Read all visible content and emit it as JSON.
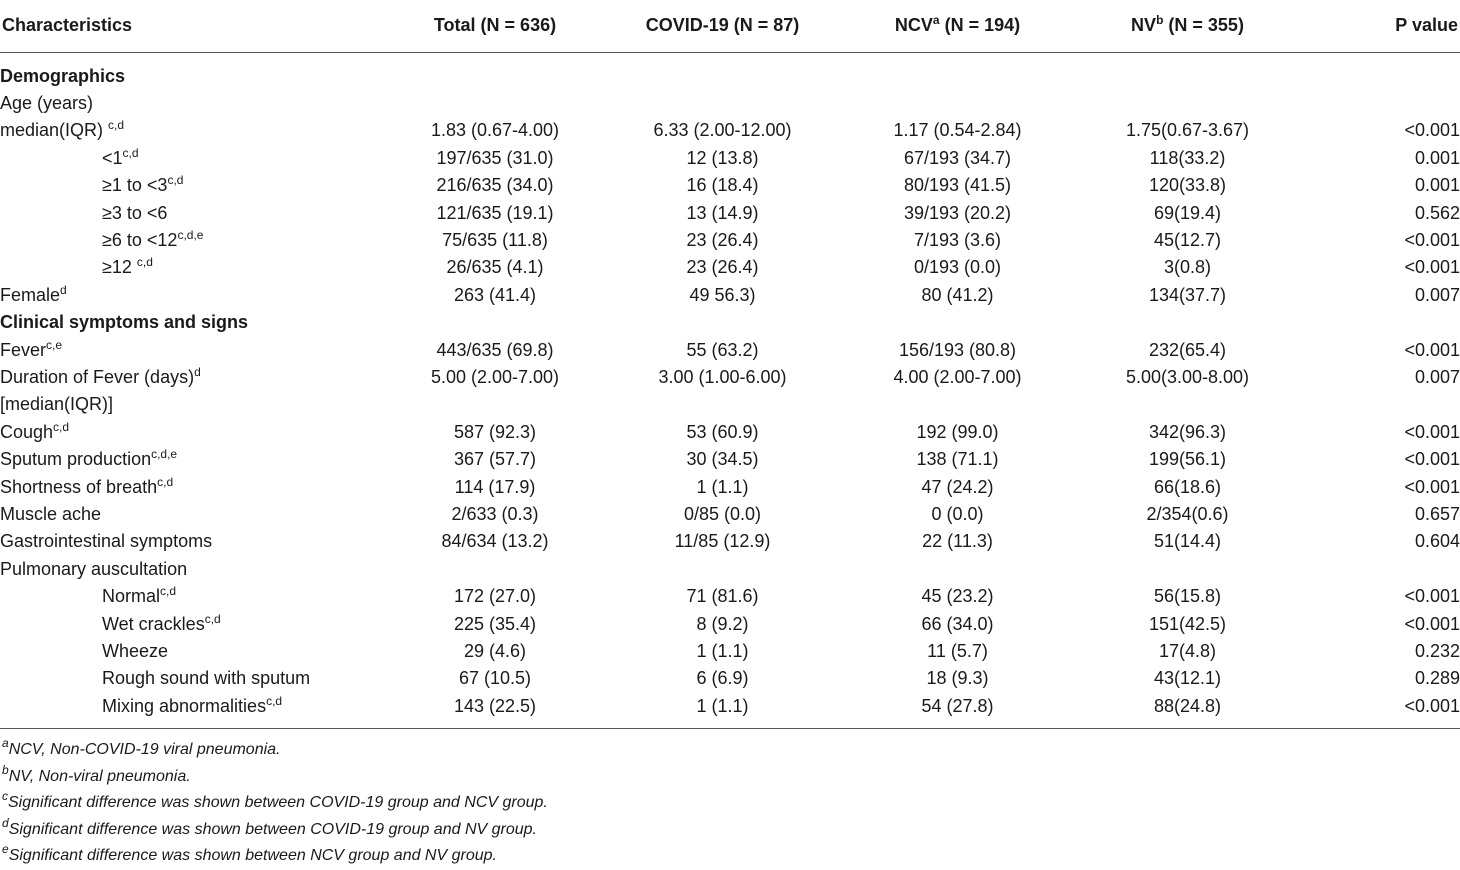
{
  "header": {
    "characteristics": "Characteristics",
    "total": "Total (N = 636)",
    "covid": "COVID-19 (N = 87)",
    "ncv_name": "NCV",
    "ncv_sup": "a",
    "ncv_n": " (N = 194)",
    "nv_name": "NV",
    "nv_sup": "b",
    "nv_n": " (N = 355)",
    "pvalue": "P value"
  },
  "rows": [
    {
      "label": "Demographics",
      "sup": "",
      "section": true,
      "indent": false,
      "cells": [
        "",
        "",
        "",
        "",
        ""
      ]
    },
    {
      "label": "Age (years)",
      "sup": "",
      "section": false,
      "indent": false,
      "cells": [
        "",
        "",
        "",
        "",
        ""
      ]
    },
    {
      "label": "median(IQR) ",
      "sup": "c,d",
      "section": false,
      "indent": false,
      "cells": [
        "1.83 (0.67-4.00)",
        "6.33 (2.00-12.00)",
        "1.17 (0.54-2.84)",
        "1.75(0.67-3.67)",
        "<0.001"
      ]
    },
    {
      "label": "<1",
      "sup": "c,d",
      "section": false,
      "indent": true,
      "cells": [
        "197/635 (31.0)",
        "12 (13.8)",
        "67/193 (34.7)",
        "118(33.2)",
        "0.001"
      ]
    },
    {
      "label": "≥1 to <3",
      "sup": "c,d",
      "section": false,
      "indent": true,
      "cells": [
        "216/635 (34.0)",
        "16 (18.4)",
        "80/193 (41.5)",
        "120(33.8)",
        "0.001"
      ]
    },
    {
      "label": "≥3 to <6",
      "sup": "",
      "section": false,
      "indent": true,
      "cells": [
        "121/635 (19.1)",
        "13 (14.9)",
        "39/193 (20.2)",
        "69(19.4)",
        "0.562"
      ]
    },
    {
      "label": "≥6 to <12",
      "sup": "c,d,e",
      "section": false,
      "indent": true,
      "cells": [
        "75/635 (11.8)",
        "23 (26.4)",
        "7/193 (3.6)",
        "45(12.7)",
        "<0.001"
      ]
    },
    {
      "label": "≥12 ",
      "sup": "c,d",
      "section": false,
      "indent": true,
      "cells": [
        "26/635 (4.1)",
        "23 (26.4)",
        "0/193 (0.0)",
        "3(0.8)",
        "<0.001"
      ]
    },
    {
      "label": "Female",
      "sup": "d",
      "section": false,
      "indent": false,
      "cells": [
        "263 (41.4)",
        "49 56.3)",
        "80 (41.2)",
        "134(37.7)",
        "0.007"
      ]
    },
    {
      "label": "Clinical symptoms and signs",
      "sup": "",
      "section": true,
      "indent": false,
      "cells": [
        "",
        "",
        "",
        "",
        ""
      ]
    },
    {
      "label": "Fever",
      "sup": "c,e",
      "section": false,
      "indent": false,
      "cells": [
        "443/635 (69.8)",
        "55 (63.2)",
        "156/193 (80.8)",
        "232(65.4)",
        "<0.001"
      ]
    },
    {
      "label": "Duration of Fever (days)",
      "sup": "d",
      "section": false,
      "indent": false,
      "cells": [
        "5.00 (2.00-7.00)",
        "3.00 (1.00-6.00)",
        "4.00 (2.00-7.00)",
        "5.00(3.00-8.00)",
        "0.007"
      ]
    },
    {
      "label": "[median(IQR)]",
      "sup": "",
      "section": false,
      "indent": false,
      "cells": [
        "",
        "",
        "",
        "",
        ""
      ]
    },
    {
      "label": "Cough",
      "sup": "c,d",
      "section": false,
      "indent": false,
      "cells": [
        "587 (92.3)",
        "53 (60.9)",
        "192 (99.0)",
        "342(96.3)",
        "<0.001"
      ]
    },
    {
      "label": "Sputum production",
      "sup": "c,d,e",
      "section": false,
      "indent": false,
      "cells": [
        "367 (57.7)",
        "30 (34.5)",
        "138 (71.1)",
        "199(56.1)",
        "<0.001"
      ]
    },
    {
      "label": "Shortness of breath",
      "sup": "c,d",
      "section": false,
      "indent": false,
      "cells": [
        "114 (17.9)",
        "1 (1.1)",
        "47 (24.2)",
        "66(18.6)",
        "<0.001"
      ]
    },
    {
      "label": "Muscle ache",
      "sup": "",
      "section": false,
      "indent": false,
      "cells": [
        "2/633 (0.3)",
        "0/85 (0.0)",
        "0 (0.0)",
        "2/354(0.6)",
        "0.657"
      ]
    },
    {
      "label": "Gastrointestinal symptoms",
      "sup": "",
      "section": false,
      "indent": false,
      "cells": [
        "84/634 (13.2)",
        "11/85 (12.9)",
        "22 (11.3)",
        "51(14.4)",
        "0.604"
      ]
    },
    {
      "label": "Pulmonary auscultation",
      "sup": "",
      "section": false,
      "indent": false,
      "cells": [
        "",
        "",
        "",
        "",
        ""
      ]
    },
    {
      "label": "Normal",
      "sup": "c,d",
      "section": false,
      "indent": true,
      "cells": [
        "172 (27.0)",
        "71 (81.6)",
        "45 (23.2)",
        "56(15.8)",
        "<0.001"
      ]
    },
    {
      "label": "Wet crackles",
      "sup": "c,d",
      "section": false,
      "indent": true,
      "cells": [
        "225 (35.4)",
        "8 (9.2)",
        "66 (34.0)",
        "151(42.5)",
        "<0.001"
      ]
    },
    {
      "label": "Wheeze",
      "sup": "",
      "section": false,
      "indent": true,
      "cells": [
        "29 (4.6)",
        "1 (1.1)",
        "11 (5.7)",
        "17(4.8)",
        "0.232"
      ]
    },
    {
      "label": "Rough sound with sputum",
      "sup": "",
      "section": false,
      "indent": true,
      "cells": [
        "67 (10.5)",
        "6 (6.9)",
        "18 (9.3)",
        "43(12.1)",
        "0.289"
      ]
    },
    {
      "label": "Mixing abnormalities",
      "sup": "c,d",
      "section": false,
      "indent": true,
      "cells": [
        "143 (22.5)",
        "1 (1.1)",
        "54 (27.8)",
        "88(24.8)",
        "<0.001"
      ]
    }
  ],
  "footnotes": [
    {
      "mark": "a",
      "text": "NCV, Non-COVID-19 viral pneumonia."
    },
    {
      "mark": "b",
      "text": "NV, Non-viral pneumonia."
    },
    {
      "mark": "c",
      "text": "Significant difference was shown between COVID-19 group and NCV group."
    },
    {
      "mark": "d",
      "text": "Significant difference was shown between COVID-19 group and NV group."
    },
    {
      "mark": "e",
      "text": "Significant difference was shown between NCV group and NV group."
    }
  ]
}
